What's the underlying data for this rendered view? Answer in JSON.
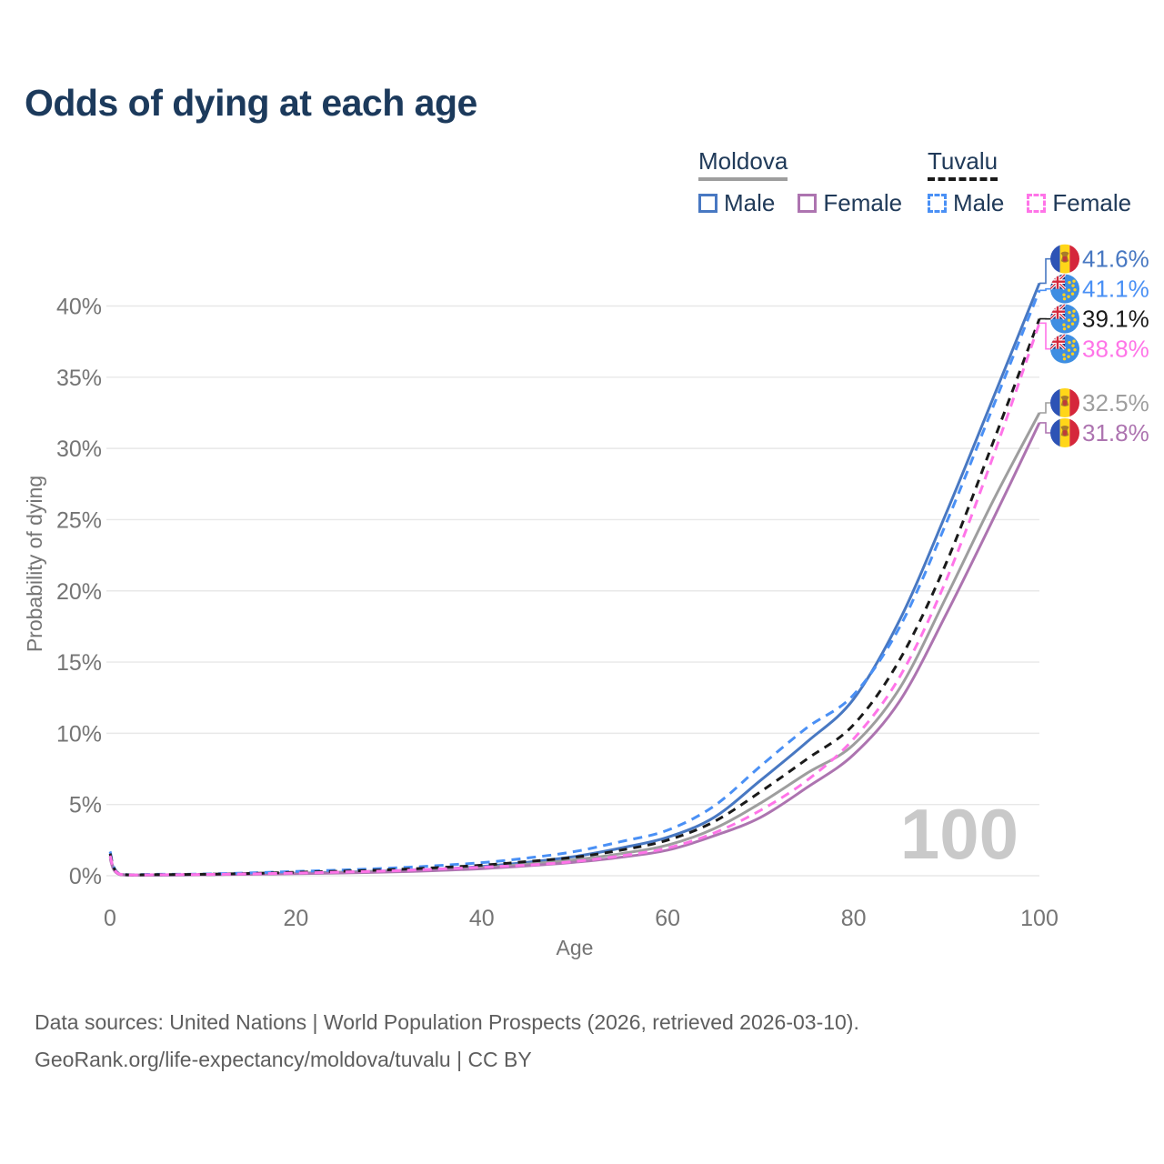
{
  "title": "Odds of dying at each age",
  "legend": {
    "groups": [
      {
        "country": "Moldova",
        "line_style": "solid",
        "line_color": "#9e9e9e",
        "items": [
          {
            "label": "Male",
            "color": "#4878c2",
            "dashed": false
          },
          {
            "label": "Female",
            "color": "#ad74b0",
            "dashed": false
          }
        ]
      },
      {
        "country": "Tuvalu",
        "line_style": "dashed",
        "line_color": "#1a1a1a",
        "items": [
          {
            "label": "Male",
            "color": "#4a90f5",
            "dashed": true
          },
          {
            "label": "Female",
            "color": "#ff74e8",
            "dashed": true
          }
        ]
      }
    ]
  },
  "chart_data": {
    "type": "line",
    "title": "Odds of dying at each age",
    "xlabel": "Age",
    "ylabel": "Probability of dying",
    "x_ticks": [
      "0",
      "20",
      "40",
      "60",
      "80",
      "100"
    ],
    "y_ticks": [
      "0%",
      "5%",
      "10%",
      "15%",
      "20%",
      "25%",
      "30%",
      "35%",
      "40%"
    ],
    "xlim": [
      0,
      100
    ],
    "ylim": [
      0,
      43
    ],
    "grid": true,
    "legend_position": "top-right",
    "watermark": "100",
    "ages": [
      0,
      1,
      5,
      10,
      15,
      20,
      25,
      30,
      35,
      40,
      45,
      50,
      55,
      60,
      65,
      70,
      75,
      80,
      85,
      90,
      95,
      100
    ],
    "series": [
      {
        "id": "moldova-male",
        "name": "Moldova Male",
        "country": "Moldova",
        "sex": "Male",
        "style": "solid",
        "color": "#4878c2",
        "flag": "moldova",
        "end_label": "41.6%",
        "values": [
          1.4,
          0.1,
          0.05,
          0.07,
          0.12,
          0.18,
          0.25,
          0.34,
          0.46,
          0.65,
          0.95,
          1.35,
          1.95,
          2.7,
          4.1,
          6.7,
          9.4,
          12.4,
          18.0,
          25.5,
          33.5,
          41.6
        ]
      },
      {
        "id": "moldova-all",
        "name": "Moldova",
        "country": "Moldova",
        "sex": "All",
        "style": "solid",
        "color": "#9e9e9e",
        "flag": "moldova",
        "end_label": "32.5%",
        "values": [
          1.3,
          0.1,
          0.06,
          0.08,
          0.11,
          0.17,
          0.23,
          0.31,
          0.42,
          0.58,
          0.82,
          1.12,
          1.55,
          2.15,
          3.3,
          5.1,
          7.2,
          9.2,
          13.2,
          19.6,
          26.3,
          32.5
        ]
      },
      {
        "id": "moldova-female",
        "name": "Moldova Female",
        "country": "Moldova",
        "sex": "Female",
        "style": "solid",
        "color": "#ad74b0",
        "flag": "moldova",
        "end_label": "31.8%",
        "values": [
          1.2,
          0.09,
          0.05,
          0.07,
          0.1,
          0.14,
          0.19,
          0.26,
          0.36,
          0.5,
          0.7,
          0.95,
          1.3,
          1.8,
          2.8,
          4.1,
          6.2,
          8.5,
          12.3,
          18.4,
          25.0,
          31.8
        ]
      },
      {
        "id": "tuvalu-male",
        "name": "Tuvalu Male",
        "country": "Tuvalu",
        "sex": "Male",
        "style": "dashed",
        "color": "#4a90f5",
        "flag": "tuvalu",
        "end_label": "41.1%",
        "values": [
          1.7,
          0.15,
          0.1,
          0.12,
          0.2,
          0.3,
          0.4,
          0.53,
          0.7,
          0.92,
          1.25,
          1.7,
          2.4,
          3.2,
          4.9,
          7.7,
          10.4,
          12.7,
          17.5,
          24.8,
          32.9,
          41.1
        ]
      },
      {
        "id": "tuvalu-all",
        "name": "Tuvalu",
        "country": "Tuvalu",
        "sex": "All",
        "style": "dashed",
        "color": "#1a1a1a",
        "flag": "tuvalu",
        "end_label": "39.1%",
        "values": [
          1.55,
          0.13,
          0.08,
          0.1,
          0.16,
          0.24,
          0.32,
          0.42,
          0.56,
          0.74,
          1.0,
          1.3,
          1.8,
          2.5,
          3.8,
          5.9,
          8.2,
          10.6,
          15.2,
          22.0,
          30.4,
          39.1
        ]
      },
      {
        "id": "tuvalu-female",
        "name": "Tuvalu Female",
        "country": "Tuvalu",
        "sex": "Female",
        "style": "dashed",
        "color": "#ff74e8",
        "flag": "tuvalu",
        "end_label": "38.8%",
        "values": [
          1.4,
          0.12,
          0.07,
          0.09,
          0.13,
          0.19,
          0.26,
          0.34,
          0.46,
          0.6,
          0.75,
          1.0,
          1.4,
          1.95,
          3.0,
          4.6,
          6.7,
          9.6,
          14.0,
          20.8,
          29.4,
          38.8
        ]
      }
    ]
  },
  "footer": {
    "line1": "Data sources: United Nations | World Population Prospects (2026, retrieved 2026-03-10).",
    "line2": "GeoRank.org/life-expectancy/moldova/tuvalu | CC BY"
  }
}
